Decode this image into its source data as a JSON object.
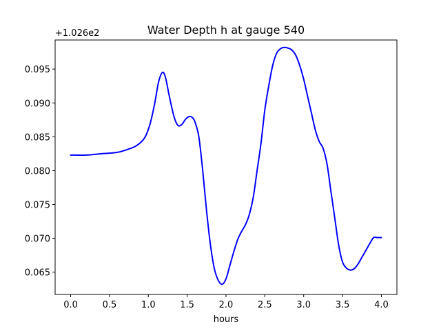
{
  "chart_data": {
    "type": "line",
    "title": "Water Depth h at gauge 540",
    "xlabel": "hours",
    "ylabel": "",
    "y_offset_label": "+1.026e2",
    "xlim": [
      -0.2,
      4.2
    ],
    "ylim": [
      0.0617,
      0.0993
    ],
    "x_ticks": [
      0.0,
      0.5,
      1.0,
      1.5,
      2.0,
      2.5,
      3.0,
      3.5,
      4.0
    ],
    "x_tick_labels": [
      "0.0",
      "0.5",
      "1.0",
      "1.5",
      "2.0",
      "2.5",
      "3.0",
      "3.5",
      "4.0"
    ],
    "y_ticks": [
      0.065,
      0.07,
      0.075,
      0.08,
      0.085,
      0.09,
      0.095
    ],
    "y_tick_labels": [
      "0.065",
      "0.070",
      "0.075",
      "0.080",
      "0.085",
      "0.090",
      "0.095"
    ],
    "grid": false,
    "series": [
      {
        "color": "#0000ff",
        "x": [
          0.0,
          0.2,
          0.4,
          0.6,
          0.75,
          0.85,
          0.95,
          1.02,
          1.08,
          1.13,
          1.18,
          1.22,
          1.27,
          1.33,
          1.38,
          1.43,
          1.48,
          1.53,
          1.57,
          1.6,
          1.65,
          1.7,
          1.75,
          1.8,
          1.85,
          1.9,
          1.95,
          2.0,
          2.05,
          2.1,
          2.15,
          2.2,
          2.25,
          2.3,
          2.35,
          2.4,
          2.45,
          2.5,
          2.55,
          2.6,
          2.65,
          2.7,
          2.75,
          2.8,
          2.85,
          2.9,
          2.95,
          3.0,
          3.05,
          3.1,
          3.15,
          3.2,
          3.25,
          3.3,
          3.35,
          3.4,
          3.45,
          3.5,
          3.55,
          3.6,
          3.65,
          3.7,
          3.75,
          3.8,
          3.85,
          3.9,
          3.95,
          4.0
        ],
        "y": [
          0.0823,
          0.0823,
          0.0825,
          0.0827,
          0.0832,
          0.0837,
          0.0848,
          0.0868,
          0.0898,
          0.093,
          0.0945,
          0.0938,
          0.091,
          0.088,
          0.0867,
          0.0868,
          0.0876,
          0.088,
          0.0878,
          0.0872,
          0.085,
          0.08,
          0.074,
          0.069,
          0.0655,
          0.0638,
          0.0632,
          0.064,
          0.066,
          0.068,
          0.0698,
          0.071,
          0.072,
          0.0735,
          0.076,
          0.08,
          0.084,
          0.089,
          0.0925,
          0.0955,
          0.0973,
          0.098,
          0.0982,
          0.0981,
          0.0978,
          0.097,
          0.0955,
          0.0935,
          0.091,
          0.0885,
          0.086,
          0.0843,
          0.0833,
          0.081,
          0.077,
          0.073,
          0.069,
          0.0665,
          0.0656,
          0.0653,
          0.0655,
          0.0662,
          0.0672,
          0.0682,
          0.0692,
          0.0701,
          0.0701,
          0.0701
        ]
      }
    ]
  }
}
